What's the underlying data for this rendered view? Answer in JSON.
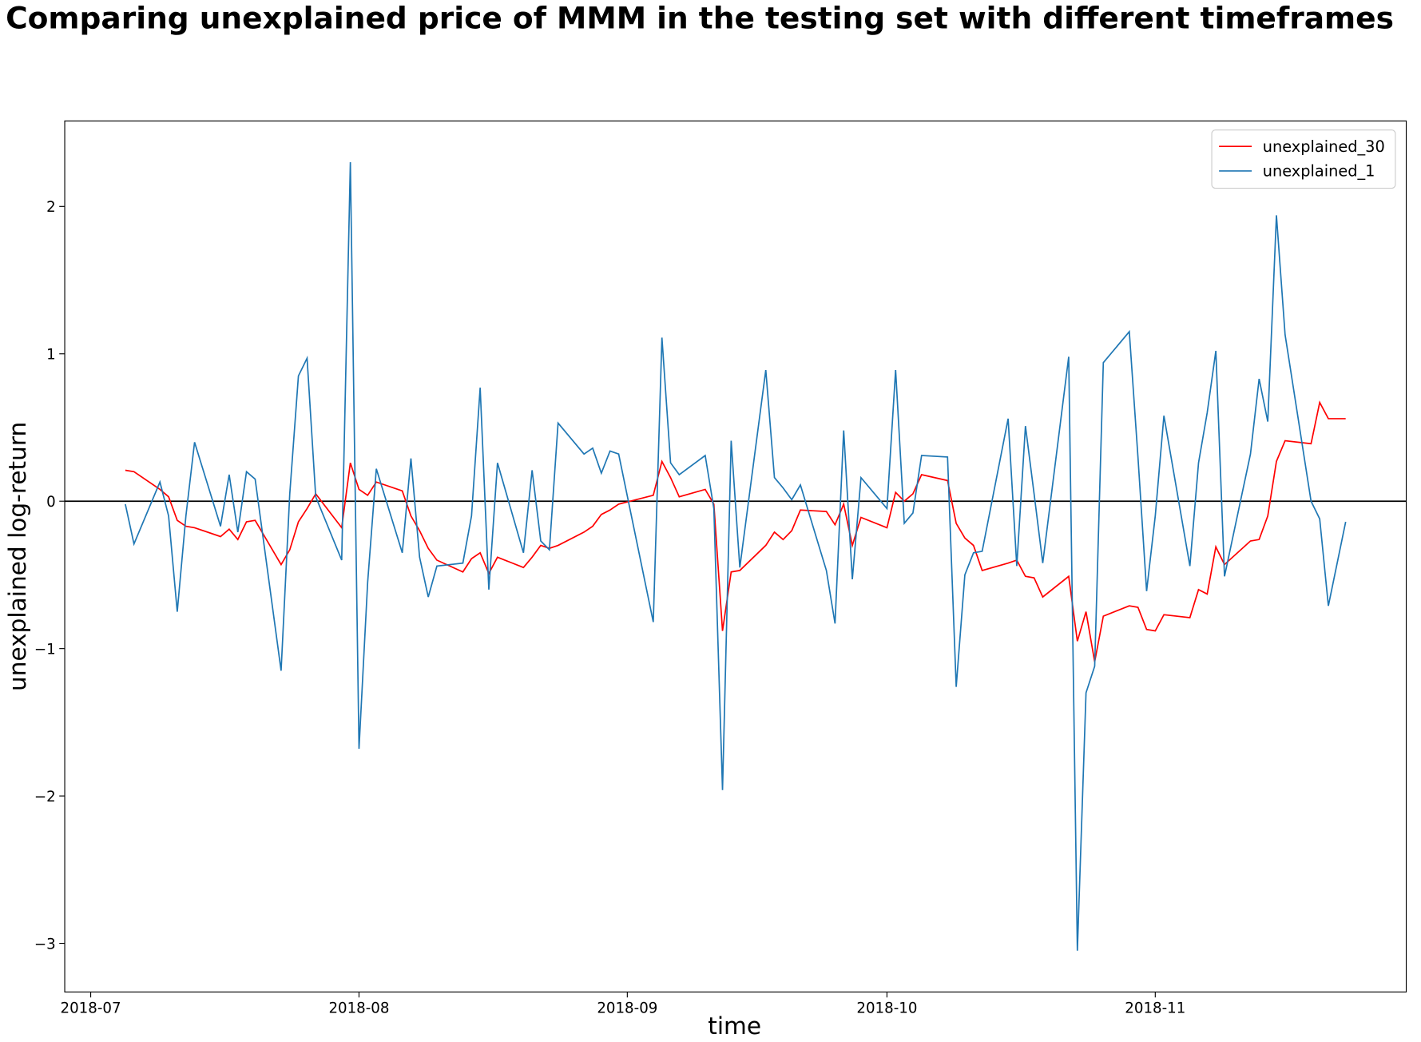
{
  "chart_data": {
    "type": "line",
    "title": "Comparing unexplained price of MMM in the testing set with different timeframes",
    "xlabel": "time",
    "ylabel": "unexplained log-return",
    "x": [
      "2018-07-05",
      "2018-07-06",
      "2018-07-09",
      "2018-07-10",
      "2018-07-11",
      "2018-07-12",
      "2018-07-13",
      "2018-07-16",
      "2018-07-17",
      "2018-07-18",
      "2018-07-19",
      "2018-07-20",
      "2018-07-23",
      "2018-07-24",
      "2018-07-25",
      "2018-07-26",
      "2018-07-27",
      "2018-07-30",
      "2018-07-31",
      "2018-08-01",
      "2018-08-02",
      "2018-08-03",
      "2018-08-06",
      "2018-08-07",
      "2018-08-08",
      "2018-08-09",
      "2018-08-10",
      "2018-08-13",
      "2018-08-14",
      "2018-08-15",
      "2018-08-16",
      "2018-08-17",
      "2018-08-20",
      "2018-08-21",
      "2018-08-22",
      "2018-08-23",
      "2018-08-24",
      "2018-08-27",
      "2018-08-28",
      "2018-08-29",
      "2018-08-30",
      "2018-08-31",
      "2018-09-04",
      "2018-09-05",
      "2018-09-06",
      "2018-09-07",
      "2018-09-10",
      "2018-09-11",
      "2018-09-12",
      "2018-09-13",
      "2018-09-14",
      "2018-09-17",
      "2018-09-18",
      "2018-09-19",
      "2018-09-20",
      "2018-09-21",
      "2018-09-24",
      "2018-09-25",
      "2018-09-26",
      "2018-09-27",
      "2018-09-28",
      "2018-10-01",
      "2018-10-02",
      "2018-10-03",
      "2018-10-04",
      "2018-10-05",
      "2018-10-08",
      "2018-10-09",
      "2018-10-10",
      "2018-10-11",
      "2018-10-12",
      "2018-10-15",
      "2018-10-16",
      "2018-10-17",
      "2018-10-18",
      "2018-10-19",
      "2018-10-22",
      "2018-10-23",
      "2018-10-24",
      "2018-10-25",
      "2018-10-26",
      "2018-10-29",
      "2018-10-30",
      "2018-10-31",
      "2018-11-01",
      "2018-11-02",
      "2018-11-05",
      "2018-11-06",
      "2018-11-07",
      "2018-11-08",
      "2018-11-09",
      "2018-11-12",
      "2018-11-13",
      "2018-11-14",
      "2018-11-15",
      "2018-11-16",
      "2018-11-19",
      "2018-11-20",
      "2018-11-21",
      "2018-11-23"
    ],
    "series": [
      {
        "name": "unexplained_30",
        "color": "#ff0000",
        "values": [
          0.21,
          0.2,
          0.08,
          0.03,
          -0.13,
          -0.17,
          -0.18,
          -0.24,
          -0.19,
          -0.26,
          -0.14,
          -0.13,
          -0.43,
          -0.33,
          -0.14,
          -0.05,
          0.05,
          -0.18,
          0.26,
          0.08,
          0.04,
          0.13,
          0.07,
          -0.1,
          -0.2,
          -0.32,
          -0.4,
          -0.48,
          -0.39,
          -0.35,
          -0.49,
          -0.38,
          -0.45,
          -0.38,
          -0.3,
          -0.32,
          -0.3,
          -0.21,
          -0.17,
          -0.09,
          -0.06,
          -0.02,
          0.04,
          0.27,
          0.16,
          0.03,
          0.08,
          -0.02,
          -0.88,
          -0.48,
          -0.47,
          -0.3,
          -0.21,
          -0.26,
          -0.2,
          -0.06,
          -0.07,
          -0.16,
          -0.02,
          -0.3,
          -0.11,
          -0.18,
          0.06,
          0.0,
          0.05,
          0.18,
          0.14,
          -0.15,
          -0.25,
          -0.3,
          -0.47,
          -0.42,
          -0.4,
          -0.51,
          -0.52,
          -0.65,
          -0.51,
          -0.95,
          -0.75,
          -1.09,
          -0.78,
          -0.71,
          -0.72,
          -0.87,
          -0.88,
          -0.77,
          -0.79,
          -0.6,
          -0.63,
          -0.31,
          -0.43,
          -0.27,
          -0.26,
          -0.1,
          0.27,
          0.41,
          0.39,
          0.67,
          0.56,
          0.56
        ]
      },
      {
        "name": "unexplained_1",
        "color": "#1f77b4",
        "values": [
          -0.02,
          -0.29,
          0.13,
          -0.1,
          -0.75,
          -0.1,
          0.4,
          -0.17,
          0.18,
          -0.21,
          0.2,
          0.15,
          -1.15,
          0.05,
          0.85,
          0.97,
          0.03,
          -0.4,
          2.3,
          -1.68,
          -0.55,
          0.22,
          -0.35,
          0.29,
          -0.38,
          -0.65,
          -0.44,
          -0.42,
          -0.1,
          0.77,
          -0.6,
          0.26,
          -0.35,
          0.21,
          -0.27,
          -0.33,
          0.53,
          0.32,
          0.36,
          0.19,
          0.34,
          0.32,
          -0.82,
          1.11,
          0.26,
          0.18,
          0.31,
          -0.05,
          -1.96,
          0.41,
          -0.45,
          0.89,
          0.16,
          0.09,
          0.01,
          0.11,
          -0.47,
          -0.83,
          0.48,
          -0.53,
          0.16,
          -0.05,
          0.89,
          -0.15,
          -0.08,
          0.31,
          0.3,
          -1.26,
          -0.5,
          -0.35,
          -0.34,
          0.56,
          -0.44,
          0.51,
          0.05,
          -0.42,
          0.98,
          -3.05,
          -1.3,
          -1.12,
          0.94,
          1.15,
          0.3,
          -0.61,
          -0.1,
          0.58,
          -0.44,
          0.26,
          0.6,
          1.02,
          -0.51,
          0.32,
          0.83,
          0.54,
          1.94,
          1.13,
          0.0,
          -0.12,
          -0.71,
          -0.14
        ]
      }
    ],
    "xlim": [
      "2018-06-28",
      "2018-11-30"
    ],
    "xticks": [
      {
        "value": "2018-07-01",
        "label": "2018-07"
      },
      {
        "value": "2018-08-01",
        "label": "2018-08"
      },
      {
        "value": "2018-09-01",
        "label": "2018-09"
      },
      {
        "value": "2018-10-01",
        "label": "2018-10"
      },
      {
        "value": "2018-11-01",
        "label": "2018-11"
      }
    ],
    "ylim": [
      -3.33,
      2.58
    ],
    "yticks": [
      {
        "value": -3,
        "label": "−3"
      },
      {
        "value": -2,
        "label": "−2"
      },
      {
        "value": -1,
        "label": "−1"
      },
      0,
      1,
      2
    ],
    "hline": 0,
    "legend": "upper right",
    "grid": false
  }
}
